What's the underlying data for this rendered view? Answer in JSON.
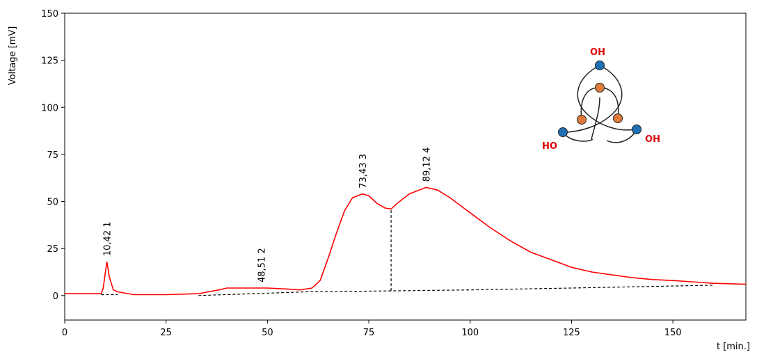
{
  "chart_data": {
    "type": "line",
    "ylabel": "Voltage [mV]",
    "xlabel": "t [min.]",
    "xlim": [
      0,
      168
    ],
    "ylim": [
      -13,
      150
    ],
    "xticks": [
      0,
      25,
      50,
      75,
      100,
      125,
      150
    ],
    "yticks": [
      0,
      25,
      50,
      75,
      100,
      125,
      150
    ],
    "series": [
      {
        "color": "#ff0000",
        "dash": false,
        "x": [
          0,
          5.5,
          9,
          9.5,
          10,
          10.42,
          11,
          12,
          13,
          17,
          25,
          33,
          38,
          40,
          50,
          55,
          58,
          61,
          63,
          65,
          67,
          69,
          71,
          73.43,
          75,
          77,
          79,
          80.5,
          82,
          85,
          89.12,
          92,
          95,
          100,
          105,
          110,
          115,
          120,
          125,
          130,
          135,
          140,
          145,
          150,
          160,
          168
        ],
        "values": [
          1,
          1,
          1,
          4,
          12,
          18,
          10,
          3,
          2,
          0.5,
          0.5,
          1,
          3,
          4,
          4,
          3.5,
          3,
          4,
          8,
          20,
          33,
          45,
          52,
          54,
          53,
          49,
          46.5,
          46,
          49,
          54,
          57.5,
          56,
          52,
          44,
          36,
          29,
          23,
          19,
          15,
          12.5,
          11,
          9.5,
          8.5,
          8,
          6.5,
          6
        ]
      },
      {
        "color": "#000000",
        "dash": true,
        "x": [
          9,
          13,
          25,
          33,
          60,
          80.5,
          100,
          125,
          160
        ],
        "values": [
          0.5,
          0.5,
          null,
          0,
          2,
          2.5,
          3,
          4,
          5.5
        ]
      },
      {
        "color": "#000000",
        "dash": true,
        "x": [
          80.5,
          80.5
        ],
        "values": [
          2.5,
          46
        ]
      }
    ],
    "annotations": [
      {
        "x": 10.42,
        "text": "10,42 1"
      },
      {
        "x": 48.51,
        "text": "48,51 2"
      },
      {
        "x": 73.43,
        "text": "73,43 3"
      },
      {
        "x": 89.12,
        "text": "89,12 4"
      }
    ]
  },
  "inset_labels": [
    "OH",
    "HO",
    "OH"
  ]
}
